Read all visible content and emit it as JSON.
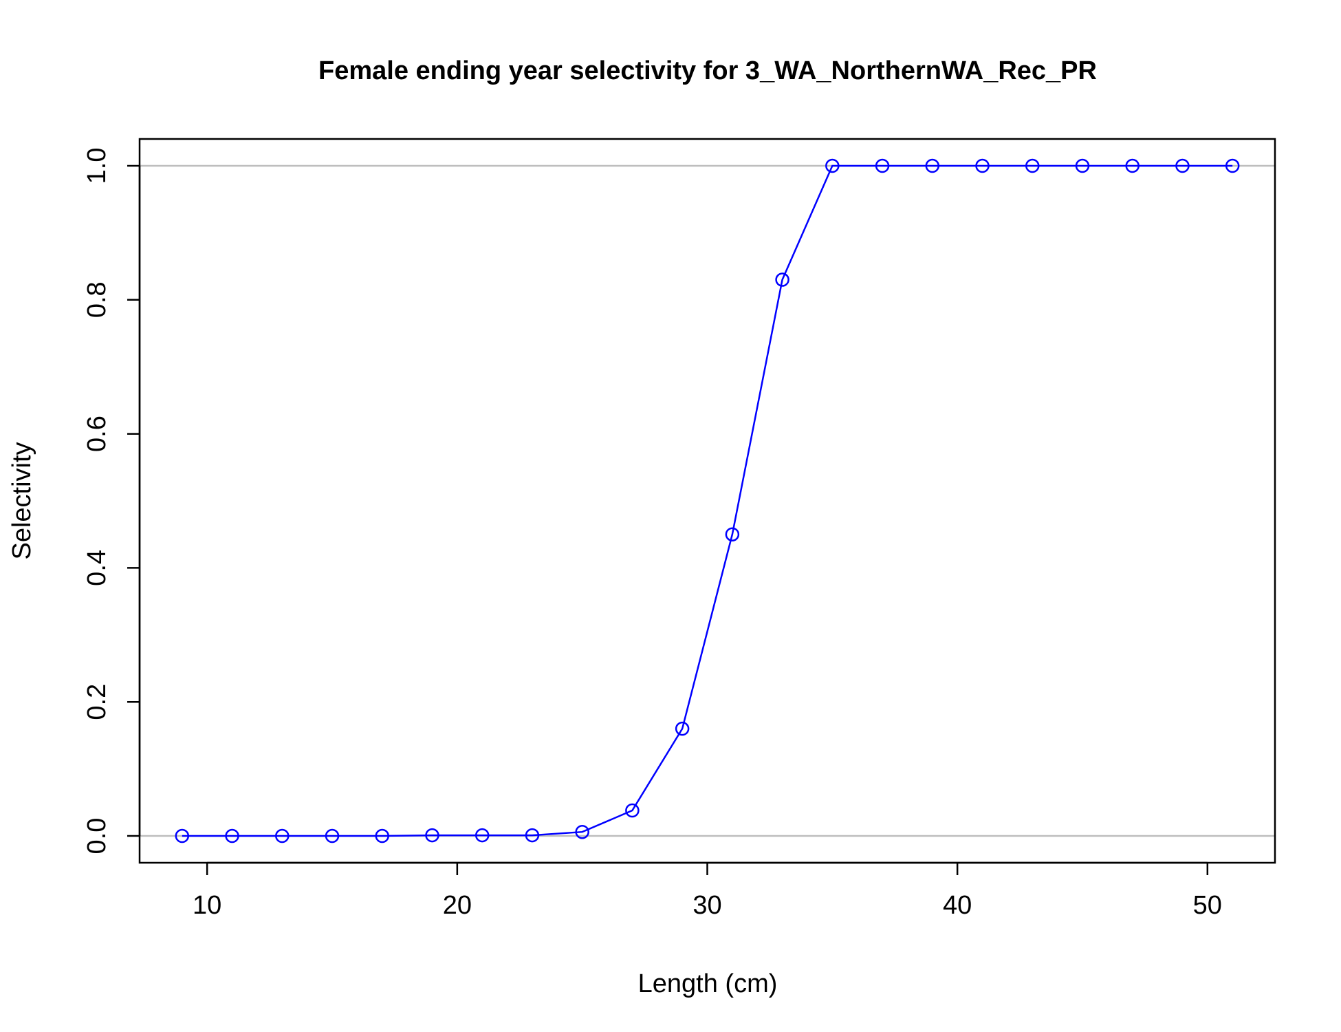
{
  "chart_data": {
    "type": "line",
    "title": "Female ending year selectivity for 3_WA_NorthernWA_Rec_PR",
    "xlabel": "Length (cm)",
    "ylabel": "Selectivity",
    "xlim": [
      7.3,
      52.7
    ],
    "ylim": [
      -0.04,
      1.04
    ],
    "x_ticks": [
      10,
      20,
      30,
      40,
      50
    ],
    "y_ticks": [
      0.0,
      0.2,
      0.4,
      0.6,
      0.8,
      1.0
    ],
    "y_tick_labels": [
      "0.0",
      "0.2",
      "0.4",
      "0.6",
      "0.8",
      "1.0"
    ],
    "reference_lines": [
      0,
      1
    ],
    "grid": false,
    "series": [
      {
        "color": "#0000ff",
        "marker": "open-circle",
        "x": [
          9,
          11,
          13,
          15,
          17,
          19,
          21,
          23,
          25,
          27,
          29,
          31,
          33,
          35,
          37,
          39,
          41,
          43,
          45,
          47,
          49,
          51
        ],
        "y": [
          0.0,
          0.0,
          0.0,
          0.0,
          0.0,
          0.001,
          0.001,
          0.001,
          0.006,
          0.038,
          0.16,
          0.45,
          0.83,
          1.0,
          1.0,
          1.0,
          1.0,
          1.0,
          1.0,
          1.0,
          1.0,
          1.0
        ]
      }
    ],
    "colors": {
      "series": "#0000ff",
      "reference_line": "#bebebe",
      "frame": "#000000"
    }
  }
}
